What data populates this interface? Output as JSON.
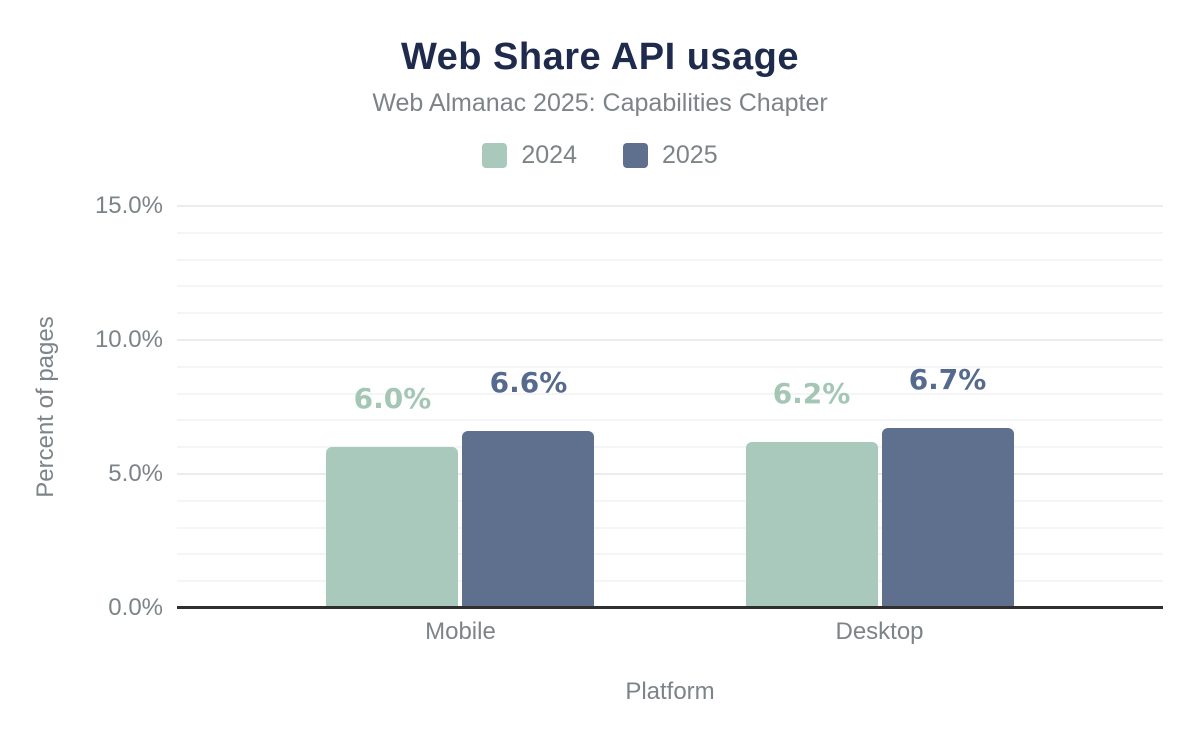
{
  "title": "Web Share API usage",
  "subtitle": "Web Almanac 2025: Capabilities Chapter",
  "legend": [
    {
      "label": "2024",
      "color": "#a8c9bb"
    },
    {
      "label": "2025",
      "color": "#5e708d"
    }
  ],
  "chart_data": {
    "type": "bar",
    "title": "Web Share API usage",
    "subtitle": "Web Almanac 2025: Capabilities Chapter",
    "xlabel": "Platform",
    "ylabel": "Percent of pages",
    "categories": [
      "Mobile",
      "Desktop"
    ],
    "series": [
      {
        "name": "2024",
        "color": "#a8c9bb",
        "label_color": "#a4c6b5",
        "values": [
          6.0,
          6.2
        ],
        "value_labels": [
          "6.0%",
          "6.2%"
        ]
      },
      {
        "name": "2025",
        "color": "#5e708d",
        "label_color": "#556a8e",
        "values": [
          6.6,
          6.7
        ],
        "value_labels": [
          "6.6%",
          "6.7%"
        ]
      }
    ],
    "ylim": [
      0,
      15
    ],
    "yticks": [
      {
        "value": 0,
        "label": "0.0%"
      },
      {
        "value": 5,
        "label": "5.0%"
      },
      {
        "value": 10,
        "label": "10.0%"
      },
      {
        "value": 15,
        "label": "15.0%"
      }
    ],
    "grid": {
      "minor_step": 1,
      "major_step": 5,
      "shown": true
    },
    "legend_position": "top-center"
  },
  "colors": {
    "title": "#1e2b4d",
    "text_muted": "#7d8488",
    "axis_line": "#2f2f2f",
    "gridline_minor": "#f5f5f5",
    "gridline_major": "#ececec",
    "background": "#ffffff"
  }
}
